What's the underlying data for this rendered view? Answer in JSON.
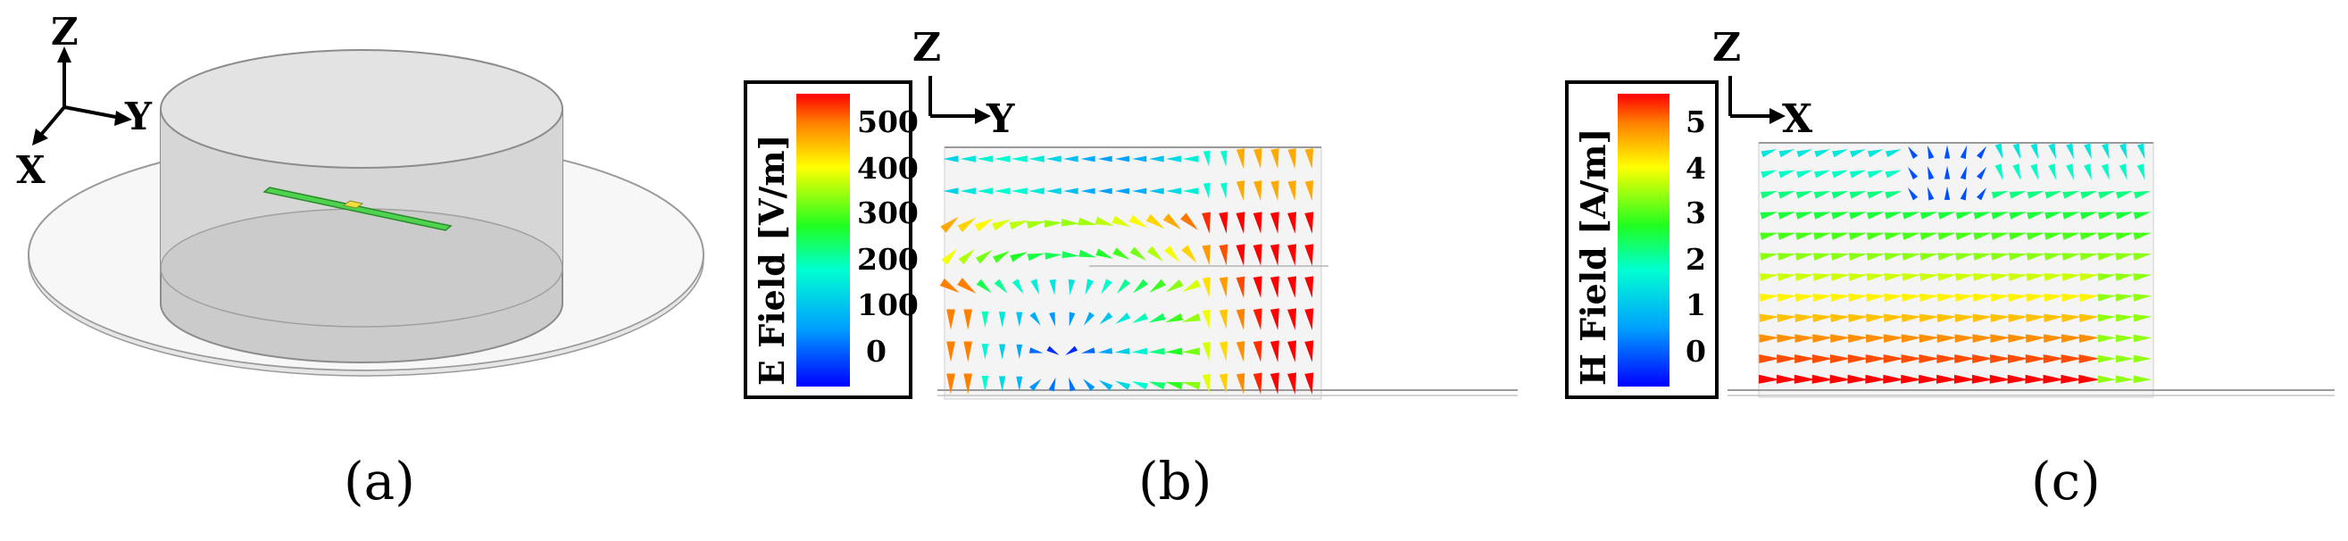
{
  "panels": [
    {
      "caption": "(a)",
      "axes": {
        "z": "Z",
        "y": "Y",
        "x": "X"
      }
    },
    {
      "caption": "(b)",
      "axes": {
        "z": "Z",
        "y": "Y"
      },
      "colorbar": {
        "label": "E Field [V/m]",
        "ticks": [
          "500",
          "400",
          "300",
          "200",
          "100",
          "0"
        ],
        "min": 0,
        "max": 550
      }
    },
    {
      "caption": "(c)",
      "axes": {
        "z": "Z",
        "x": "X"
      },
      "colorbar": {
        "label": "H Field [A/m]",
        "ticks": [
          "5",
          "4",
          "3",
          "2",
          "1",
          "0"
        ],
        "min": -0.5,
        "max": 5.5
      }
    }
  ],
  "colors": {
    "cylinder_fill": "#c4c4c4",
    "ground_plane": "#f6f6f6",
    "strip": "#4fd24f",
    "strip_feed": "#f0e040"
  }
}
